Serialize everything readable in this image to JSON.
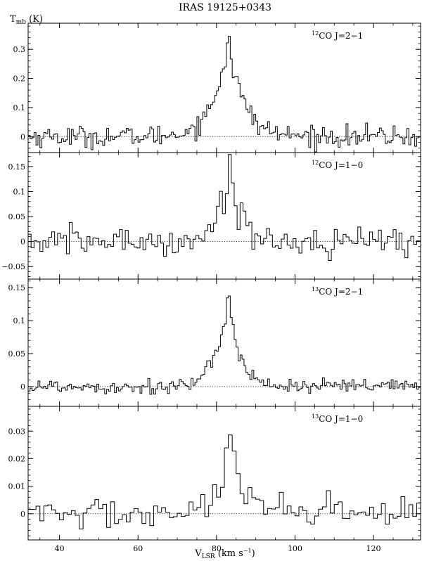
{
  "chart_data": {
    "type": "line",
    "title": "IRAS 19125+0343",
    "ylabel": {
      "main": "T",
      "sub": "mb",
      "unit": " (K)"
    },
    "xlabel": {
      "main": "V",
      "sub": "LSR",
      "unit": " (km s",
      "exp": "−1",
      "close": ")"
    },
    "xlim": [
      32,
      132
    ],
    "xticks": [
      40,
      60,
      80,
      100,
      120
    ],
    "panels": [
      {
        "label_sup": "12",
        "label": "CO J=2−1",
        "ylim": [
          -0.055,
          0.39
        ],
        "yticks": [
          0,
          0.1,
          0.2,
          0.3
        ],
        "ytick_labels": [
          "0",
          "0.1",
          "0.2",
          "0.3"
        ],
        "channel_width": 0.5,
        "noise": 0.018,
        "line": {
          "peak": 0.37,
          "center": 83,
          "width": 6
        }
      },
      {
        "label_sup": "12",
        "label": "CO J=1−0",
        "ylim": [
          -0.075,
          0.178
        ],
        "yticks": [
          -0.05,
          0,
          0.05,
          0.1,
          0.15
        ],
        "ytick_labels": [
          "−0.05",
          "0",
          "0.05",
          "0.1",
          "0.15"
        ],
        "channel_width": 0.75,
        "noise": 0.015,
        "line": {
          "peak": 0.165,
          "center": 83.5,
          "width": 4.5
        }
      },
      {
        "label_sup": "13",
        "label": "CO J=2−1",
        "ylim": [
          -0.03,
          0.163
        ],
        "yticks": [
          0,
          0.05,
          0.1,
          0.15
        ],
        "ytick_labels": [
          "0",
          "0.05",
          "0.1",
          "0.15"
        ],
        "channel_width": 0.5,
        "noise": 0.006,
        "line": {
          "peak": 0.157,
          "center": 83,
          "width": 4.5
        }
      },
      {
        "label_sup": "13",
        "label": "CO J=1−0",
        "ylim": [
          -0.0095,
          0.039
        ],
        "yticks": [
          0,
          0.01,
          0.02,
          0.03
        ],
        "ytick_labels": [
          "0",
          "0.01",
          "0.02",
          "0.03"
        ],
        "channel_width": 1.0,
        "noise": 0.003,
        "line": {
          "peak": 0.036,
          "center": 83.5,
          "width": 3.5
        }
      }
    ],
    "baseline": 0,
    "grid": false
  }
}
